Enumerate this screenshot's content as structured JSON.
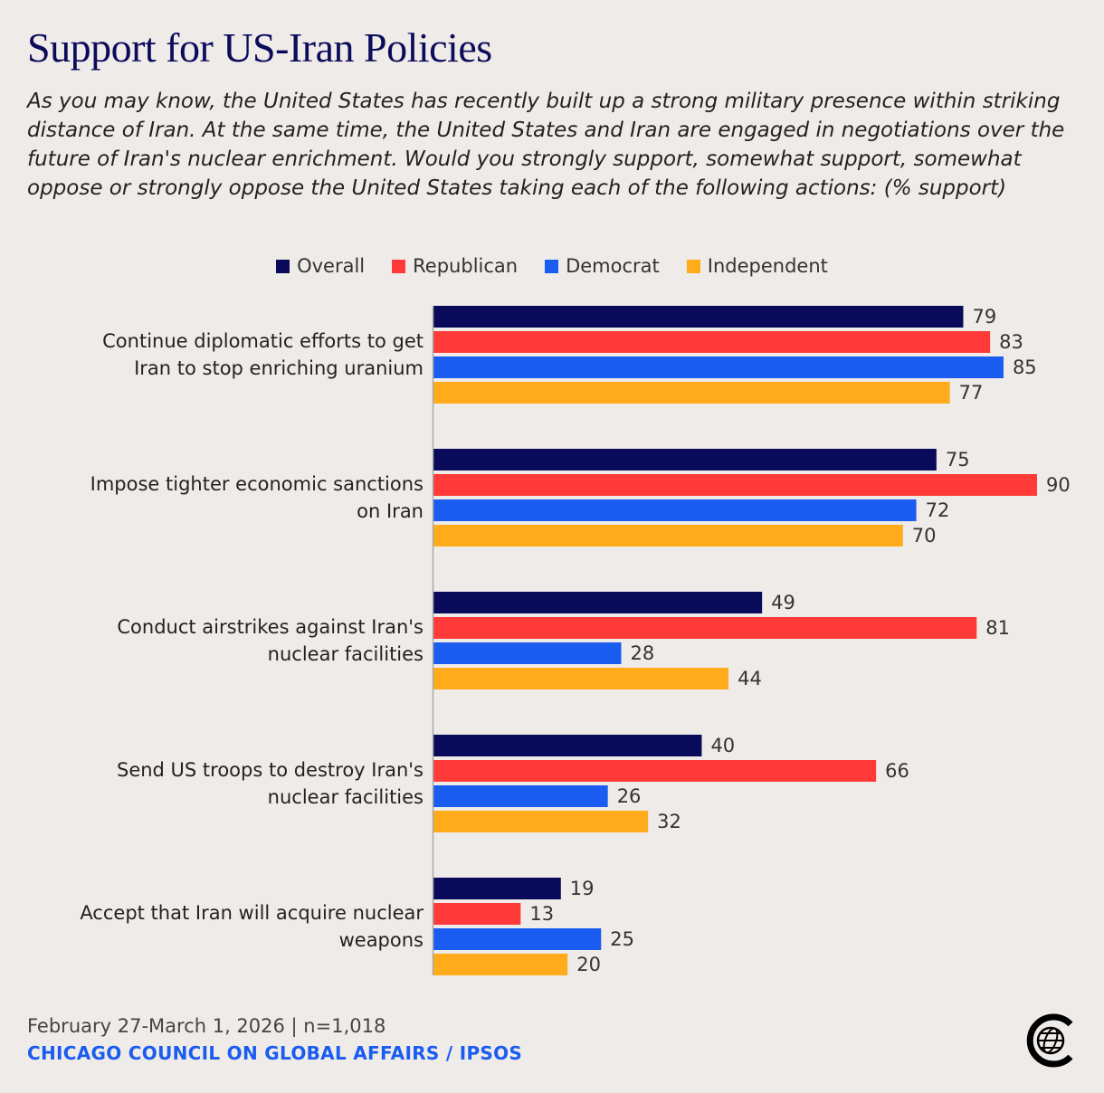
{
  "title": "Support for US-Iran Policies",
  "subtitle": "As you may know, the United States has recently built up a strong military presence within striking distance of Iran. At the same time, the United States and Iran are engaged in negotiations over the future of Iran's nuclear enrichment. Would you strongly support, somewhat support, somewhat oppose or strongly oppose the United States taking each of the following actions: (% support)",
  "footer": {
    "date_sample": "February 27-March 1, 2026 | n=1,018",
    "source": "CHICAGO COUNCIL ON GLOBAL AFFAIRS / IPSOS"
  },
  "logo_icon": "globe-c-logo-icon",
  "chart_data": {
    "type": "bar",
    "orientation": "horizontal",
    "title": "Support for US-Iran Policies",
    "xlabel": "",
    "ylabel": "% support",
    "xlim": [
      0,
      100
    ],
    "legend_placement": "top-center",
    "categories": [
      [
        "Continue diplomatic efforts to get",
        "Iran to stop enriching uranium"
      ],
      [
        "Impose tighter economic sanctions",
        "on Iran"
      ],
      [
        "Conduct airstrikes against Iran's",
        "nuclear facilities"
      ],
      [
        "Send US troops to destroy Iran's",
        "nuclear facilities"
      ],
      [
        "Accept that Iran will acquire nuclear",
        "weapons"
      ]
    ],
    "series": [
      {
        "name": "Overall",
        "color": "#0a0a5a",
        "values": [
          79,
          75,
          49,
          40,
          19
        ]
      },
      {
        "name": "Republican",
        "color": "#ff3a38",
        "values": [
          83,
          90,
          81,
          66,
          13
        ]
      },
      {
        "name": "Democrat",
        "color": "#1a5cf0",
        "values": [
          85,
          72,
          28,
          26,
          25
        ]
      },
      {
        "name": "Independent",
        "color": "#ffab1c",
        "values": [
          77,
          70,
          44,
          32,
          20
        ]
      }
    ]
  }
}
